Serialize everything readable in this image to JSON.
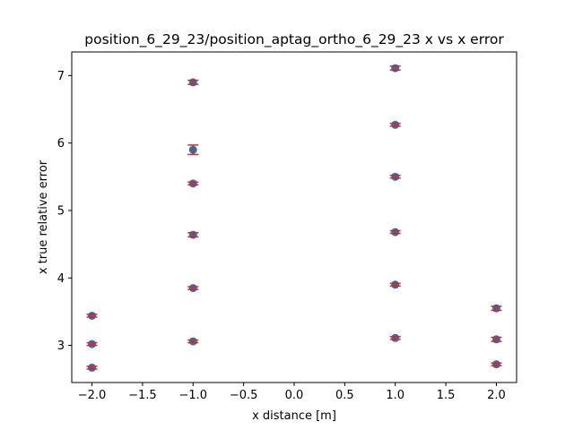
{
  "chart_data": {
    "type": "scatter",
    "title": "position_6_29_23/position_aptag_ortho_6_29_23 x vs x error",
    "xlabel": "x distance [m]",
    "ylabel": "x true relative error",
    "xlim": [
      -2.2,
      2.2
    ],
    "ylim": [
      2.45,
      7.35
    ],
    "xticks": [
      -2.0,
      -1.5,
      -1.0,
      -0.5,
      0.0,
      0.5,
      1.0,
      1.5,
      2.0
    ],
    "xtick_labels": [
      "−2.0",
      "−1.5",
      "−1.0",
      "−0.5",
      "0.0",
      "0.5",
      "1.0",
      "1.5",
      "2.0"
    ],
    "yticks": [
      3,
      4,
      5,
      6,
      7
    ],
    "ytick_labels": [
      "3",
      "4",
      "5",
      "6",
      "7"
    ],
    "grid": false,
    "marker_color": "#1f77b4",
    "errorbar_color": "#d62728",
    "points": [
      {
        "x": -2.0,
        "y": 2.67,
        "err": 0.02
      },
      {
        "x": -2.0,
        "y": 3.02,
        "err": 0.02
      },
      {
        "x": -2.0,
        "y": 3.44,
        "err": 0.02
      },
      {
        "x": -1.0,
        "y": 3.06,
        "err": 0.02
      },
      {
        "x": -1.0,
        "y": 3.85,
        "err": 0.02
      },
      {
        "x": -1.0,
        "y": 4.64,
        "err": 0.03
      },
      {
        "x": -1.0,
        "y": 5.4,
        "err": 0.02
      },
      {
        "x": -1.0,
        "y": 5.9,
        "err": 0.07
      },
      {
        "x": -1.0,
        "y": 6.9,
        "err": 0.03
      },
      {
        "x": 1.0,
        "y": 3.11,
        "err": 0.02
      },
      {
        "x": 1.0,
        "y": 3.9,
        "err": 0.02
      },
      {
        "x": 1.0,
        "y": 4.68,
        "err": 0.02
      },
      {
        "x": 1.0,
        "y": 5.5,
        "err": 0.02
      },
      {
        "x": 1.0,
        "y": 6.27,
        "err": 0.02
      },
      {
        "x": 1.0,
        "y": 7.11,
        "err": 0.03
      },
      {
        "x": 2.0,
        "y": 2.72,
        "err": 0.02
      },
      {
        "x": 2.0,
        "y": 3.09,
        "err": 0.03
      },
      {
        "x": 2.0,
        "y": 3.55,
        "err": 0.03
      }
    ]
  }
}
